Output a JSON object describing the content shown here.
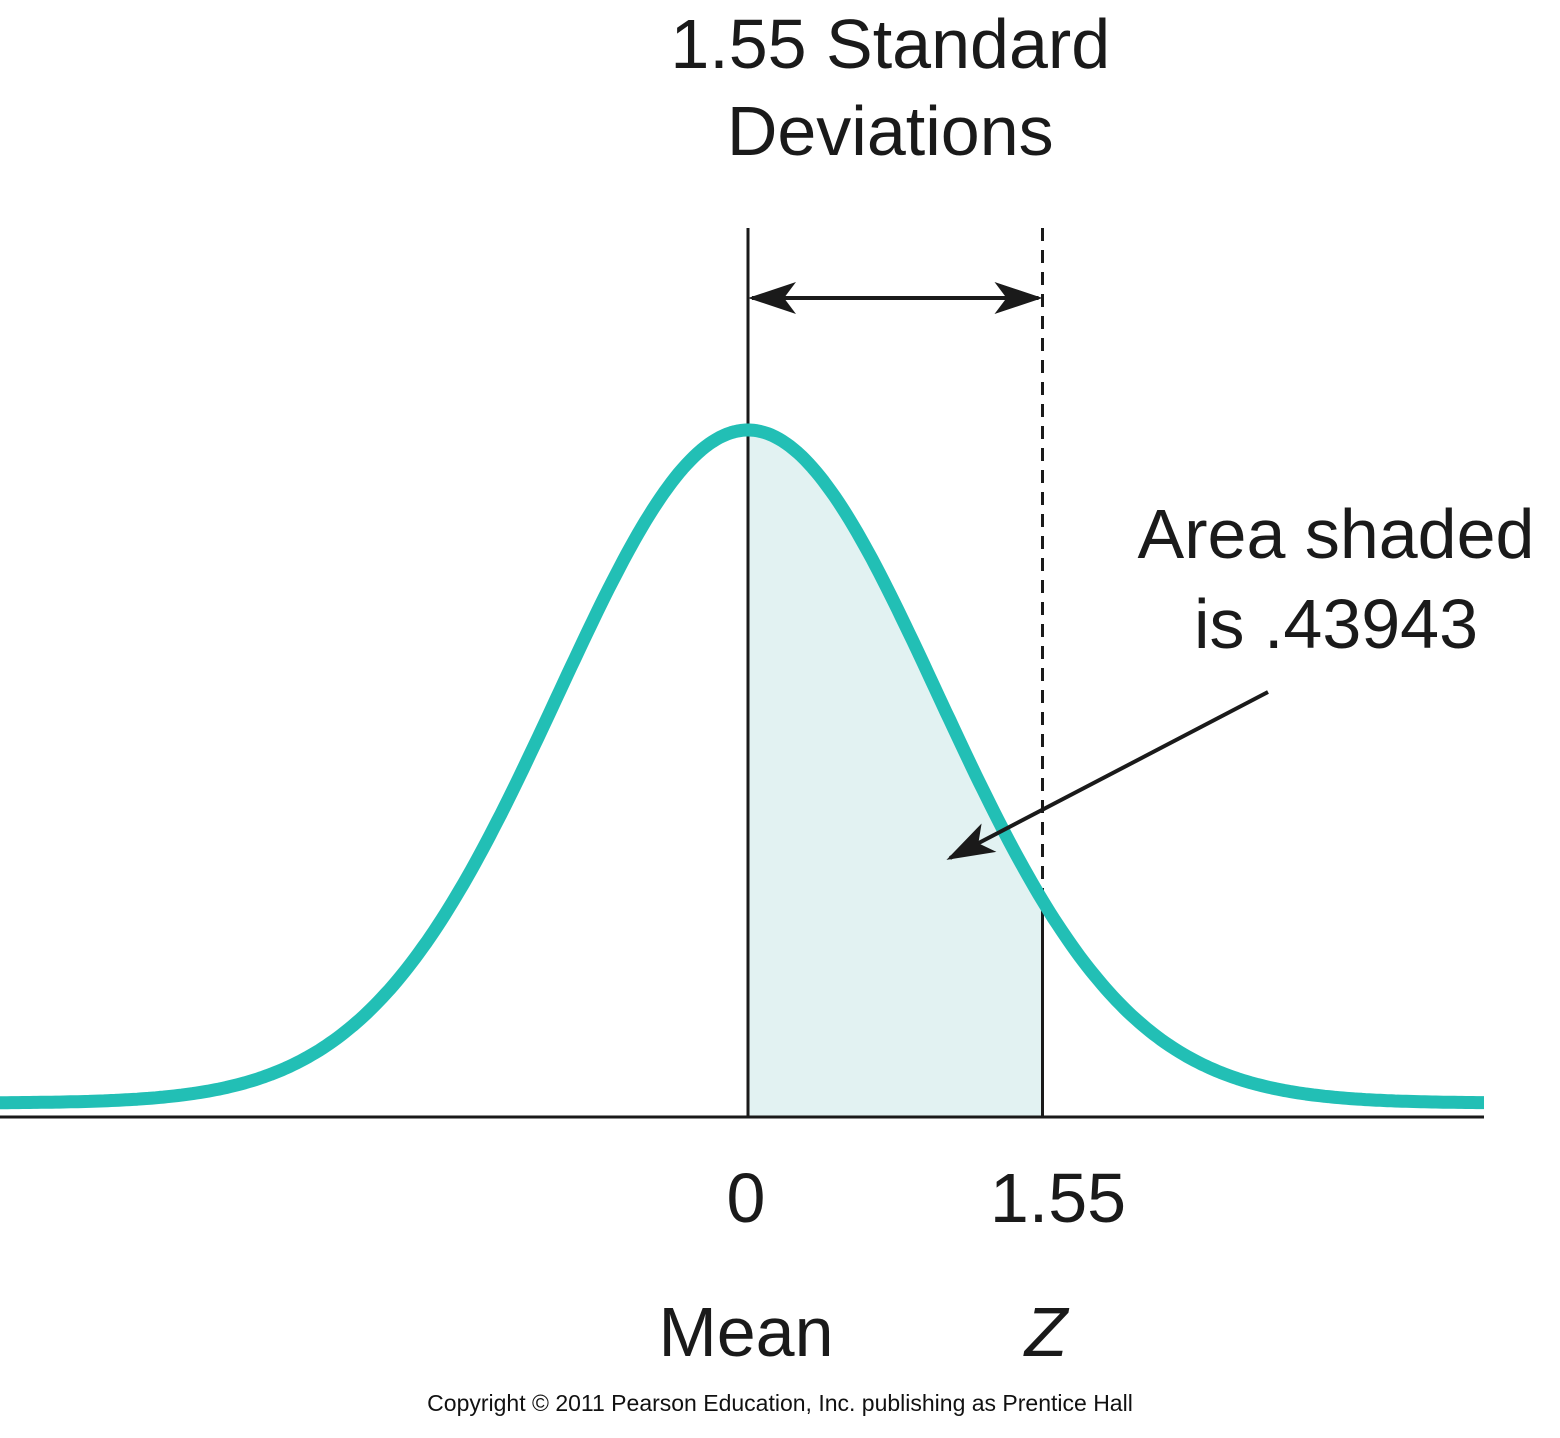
{
  "chart_data": {
    "type": "area",
    "distribution": "standard normal",
    "mean": 0,
    "sd": 1,
    "xlim": [
      -2.5,
      2.5
    ],
    "shaded_interval": [
      0,
      1.55
    ],
    "tick_labels": [
      {
        "x": 0,
        "label": "0",
        "sublabel": "Mean"
      },
      {
        "x": 1.55,
        "label": "1.55",
        "sublabel": "Z"
      }
    ],
    "span_annotation": {
      "from": 0,
      "to": 1.55,
      "lines": [
        "1.55 Standard",
        "Deviations"
      ]
    },
    "area_annotation": {
      "lines": [
        "Area shaded",
        "is .43943"
      ],
      "value": 0.43943
    },
    "colors": {
      "curve": "#22bfb5",
      "shade": "#e2f2f2",
      "ink": "#1a1a1a"
    }
  },
  "footer": {
    "copyright": "Copyright © 2011 Pearson Education, Inc. publishing as Prentice Hall"
  }
}
